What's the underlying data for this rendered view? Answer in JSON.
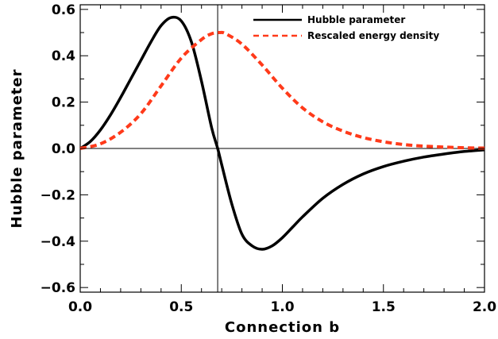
{
  "chart_data": {
    "type": "line",
    "xlabel": "Connection b",
    "ylabel": "Hubble parameter",
    "xlim": [
      0.0,
      2.0
    ],
    "ylim": [
      -0.62,
      0.62
    ],
    "x_ticks": [
      0.0,
      0.5,
      1.0,
      1.5,
      2.0
    ],
    "x_tick_labels": [
      "0.0",
      "0.5",
      "1.0",
      "1.5",
      "2.0"
    ],
    "y_ticks": [
      -0.6,
      -0.4,
      -0.2,
      0.0,
      0.2,
      0.4,
      0.6
    ],
    "y_tick_labels": [
      "−0.6",
      "−0.4",
      "−0.2",
      "0.0",
      "0.2",
      "0.4",
      "0.6"
    ],
    "reference_lines": {
      "horizontal_y": 0.0,
      "vertical_x": 0.68
    },
    "legend_position": "top-right",
    "grid": false,
    "series": [
      {
        "name": "Hubble parameter",
        "color": "#000000",
        "style": "solid",
        "x": [
          0.0,
          0.05,
          0.1,
          0.15,
          0.2,
          0.25,
          0.3,
          0.35,
          0.4,
          0.45,
          0.5,
          0.55,
          0.6,
          0.65,
          0.68,
          0.7,
          0.75,
          0.8,
          0.85,
          0.9,
          0.95,
          1.0,
          1.05,
          1.1,
          1.2,
          1.3,
          1.4,
          1.5,
          1.6,
          1.7,
          1.8,
          1.9,
          2.0
        ],
        "y": [
          0.0,
          0.03,
          0.08,
          0.145,
          0.22,
          0.3,
          0.38,
          0.46,
          0.53,
          0.565,
          0.55,
          0.46,
          0.29,
          0.09,
          0.0,
          -0.07,
          -0.24,
          -0.37,
          -0.42,
          -0.435,
          -0.42,
          -0.385,
          -0.34,
          -0.295,
          -0.215,
          -0.155,
          -0.11,
          -0.078,
          -0.055,
          -0.037,
          -0.024,
          -0.013,
          -0.006
        ]
      },
      {
        "name": "Rescaled energy density",
        "color": "#ff3a1a",
        "style": "dashed",
        "x": [
          0.0,
          0.1,
          0.2,
          0.3,
          0.4,
          0.5,
          0.6,
          0.65,
          0.69,
          0.72,
          0.8,
          0.9,
          1.0,
          1.1,
          1.2,
          1.3,
          1.4,
          1.5,
          1.6,
          1.7,
          1.8,
          1.9,
          2.0
        ],
        "y": [
          0.0,
          0.02,
          0.07,
          0.15,
          0.27,
          0.39,
          0.47,
          0.495,
          0.5,
          0.495,
          0.45,
          0.36,
          0.26,
          0.175,
          0.115,
          0.075,
          0.047,
          0.029,
          0.017,
          0.01,
          0.006,
          0.003,
          0.0015
        ]
      }
    ]
  }
}
